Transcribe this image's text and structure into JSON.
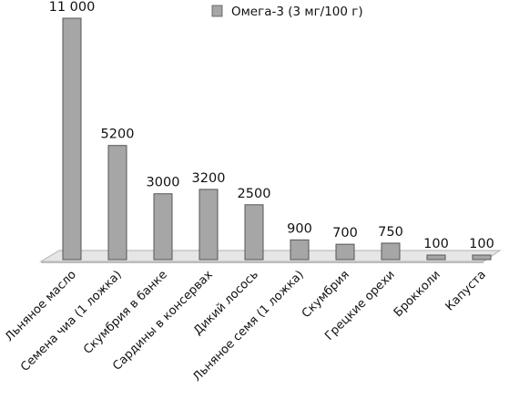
{
  "chart_data": {
    "type": "bar",
    "title": "",
    "xlabel": "",
    "ylabel": "",
    "ylim": [
      0,
      11000
    ],
    "grid": false,
    "legend_position": "top-center",
    "categories": [
      "Льняное масло",
      "Семена чиа (1 ложка)",
      "Скумбрия в банке",
      "Сардины в консервах",
      "Дикий лосось",
      "Льняное семя (1 ложка)",
      "Скумбрия",
      "Грецкие орехи",
      "Брокколи",
      "Капуста"
    ],
    "series": [
      {
        "name": "Омега-3 (3 мг/100 г)",
        "values": [
          11000,
          5200,
          3000,
          3200,
          2500,
          900,
          700,
          750,
          100,
          100
        ],
        "data_labels": [
          "11 000",
          "5200",
          "3000",
          "3200",
          "2500",
          "900",
          "700",
          "750",
          "100",
          "100"
        ]
      }
    ],
    "colors": {
      "bar_fill": "#a6a6a6",
      "bar_stroke": "#555555",
      "floor": "#bdbdbd"
    }
  }
}
